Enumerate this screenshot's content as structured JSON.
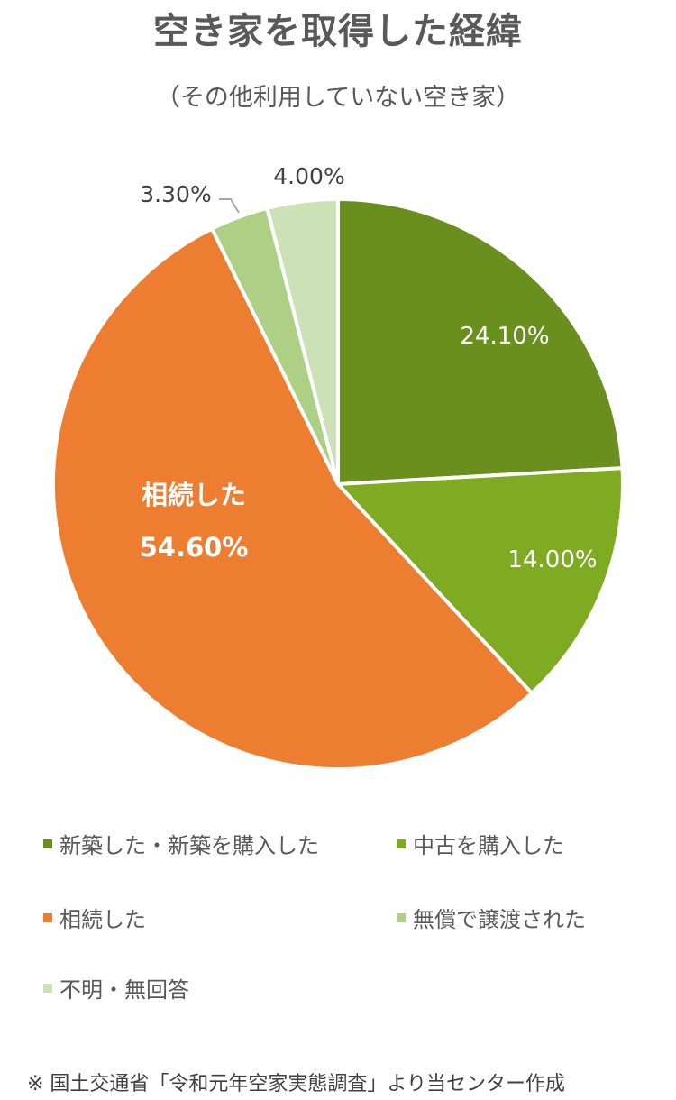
{
  "header": {
    "title": "空き家を取得した経緯",
    "subtitle": "（その他利用していない空き家）"
  },
  "chart_data": {
    "type": "pie",
    "title": "空き家を取得した経緯",
    "subtitle": "（その他利用していない空き家）",
    "categories": [
      "新築した・新築を購入した",
      "中古を購入した",
      "相続した",
      "無償で譲渡された",
      "不明・無回答"
    ],
    "values": [
      24.1,
      14.0,
      54.6,
      3.3,
      4.0
    ],
    "labels": [
      "24.10%",
      "14.00%",
      "54.60%",
      "3.30%",
      "4.00%"
    ],
    "colors": [
      "#6A8F1F",
      "#7EAB22",
      "#ED7D31",
      "#AED085",
      "#CCE1B6"
    ],
    "annotations": [
      {
        "slice": "相続した",
        "text": "相続した",
        "bold": true
      }
    ],
    "start_angle": "12 o'clock, clockwise",
    "legend_position": "bottom"
  },
  "slice_labels": {
    "s0": "24.10%",
    "s1": "14.00%",
    "s2_name": "相続した",
    "s2": "54.60%",
    "s3": "3.30%",
    "s4": "4.00%"
  },
  "legend": {
    "items": [
      {
        "label": "新築した・新築を購入した",
        "color": "#6A8F1F"
      },
      {
        "label": "中古を購入した",
        "color": "#7EAB22"
      },
      {
        "label": "相続した",
        "color": "#ED7D31"
      },
      {
        "label": "無償で譲渡された",
        "color": "#AED085"
      },
      {
        "label": "不明・無回答",
        "color": "#CCE1B6"
      }
    ]
  },
  "footnote": "※ 国土交通省「令和元年空家実態調査」より当センター作成"
}
